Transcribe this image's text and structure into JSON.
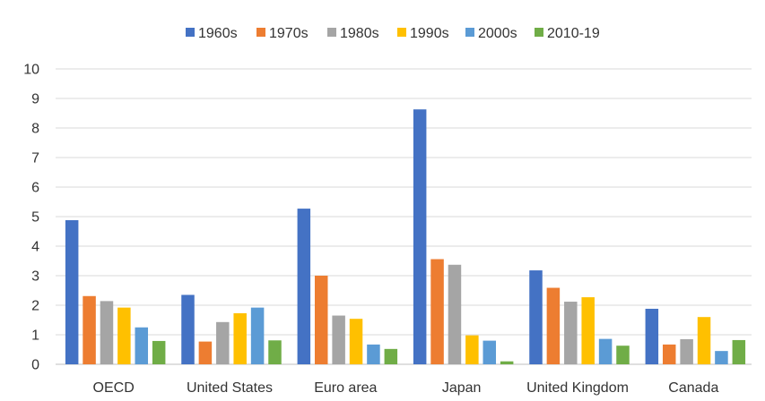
{
  "chart_data": {
    "type": "bar",
    "title": "",
    "xlabel": "",
    "ylabel": "",
    "ylim": [
      0,
      10
    ],
    "yticks": [
      0,
      1,
      2,
      3,
      4,
      5,
      6,
      7,
      8,
      9,
      10
    ],
    "grid": true,
    "legend_position": "top-center",
    "categories": [
      "OECD",
      "United States",
      "Euro area",
      "Japan",
      "United Kingdom",
      "Canada"
    ],
    "series": [
      {
        "name": "1960s",
        "color": "#4472C4",
        "values": [
          4.88,
          2.35,
          5.27,
          8.63,
          3.18,
          1.88
        ]
      },
      {
        "name": "1970s",
        "color": "#ED7D31",
        "values": [
          2.31,
          0.77,
          3.0,
          3.56,
          2.59,
          0.67
        ]
      },
      {
        "name": "1980s",
        "color": "#A5A5A5",
        "values": [
          2.14,
          1.43,
          1.65,
          3.37,
          2.12,
          0.85
        ]
      },
      {
        "name": "1990s",
        "color": "#FFC000",
        "values": [
          1.92,
          1.73,
          1.54,
          0.98,
          2.27,
          1.6
        ]
      },
      {
        "name": "2000s",
        "color": "#5B9BD5",
        "values": [
          1.25,
          1.92,
          0.67,
          0.8,
          0.86,
          0.45
        ]
      },
      {
        "name": "2010-19",
        "color": "#70AD47",
        "values": [
          0.79,
          0.81,
          0.52,
          0.1,
          0.63,
          0.82
        ]
      }
    ]
  }
}
